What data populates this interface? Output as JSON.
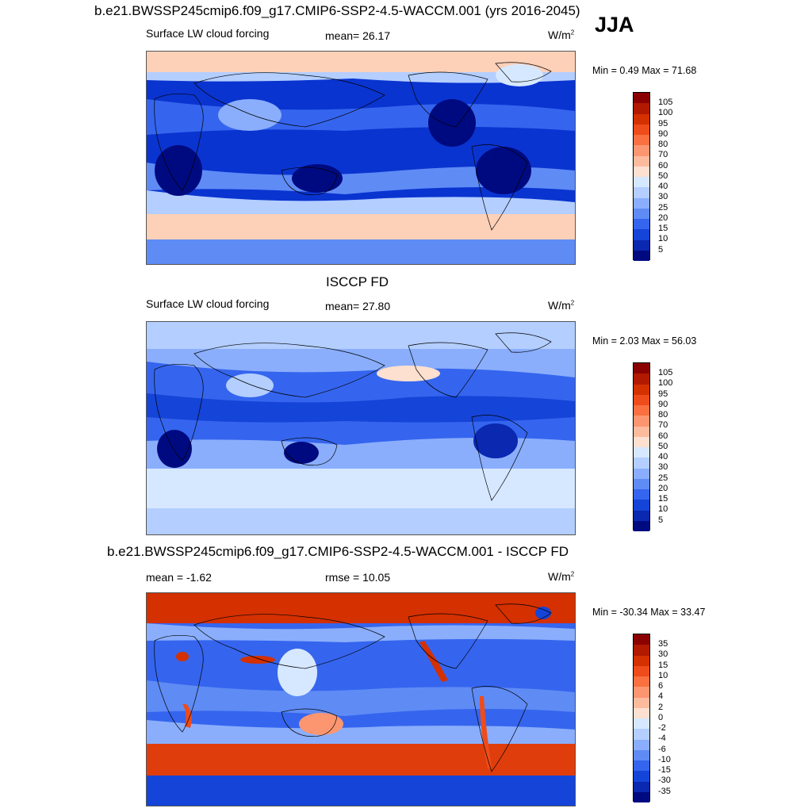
{
  "season": "JJA",
  "panels": [
    {
      "title": "b.e21.BWSSP245cmip6.f09_g17.CMIP6-SSP2-4.5-WACCM.001 (yrs 2016-2045)",
      "left_label": "Surface LW cloud forcing",
      "center_label": "mean=  26.17",
      "units_base": "W/m",
      "units_exp": "2",
      "minmax": "Min =   0.49 Max =  71.68",
      "colorbar_labels": [
        "105",
        "100",
        "95",
        "90",
        "80",
        "70",
        "60",
        "50",
        "40",
        "30",
        "25",
        "20",
        "15",
        "10",
        "5"
      ],
      "colorbar_colors": [
        "#8b0000",
        "#b11a00",
        "#d43000",
        "#ee4c1a",
        "#fa7040",
        "#fc9670",
        "#fdbb9e",
        "#fde0cf",
        "#d6e8ff",
        "#b3ceff",
        "#8aaefc",
        "#5f8bf5",
        "#3565ee",
        "#1544d8",
        "#0a28b0",
        "#000a80"
      ],
      "map_variant": "model"
    },
    {
      "title": "ISCCP FD",
      "left_label": "Surface LW cloud forcing",
      "center_label": "mean=  27.80",
      "units_base": "W/m",
      "units_exp": "2",
      "minmax": "Min =   2.03 Max =  56.03",
      "colorbar_labels": [
        "105",
        "100",
        "95",
        "90",
        "80",
        "70",
        "60",
        "50",
        "40",
        "30",
        "25",
        "20",
        "15",
        "10",
        "5"
      ],
      "colorbar_colors": [
        "#8b0000",
        "#b11a00",
        "#d43000",
        "#ee4c1a",
        "#fa7040",
        "#fc9670",
        "#fdbb9e",
        "#fde0cf",
        "#d6e8ff",
        "#b3ceff",
        "#8aaefc",
        "#5f8bf5",
        "#3565ee",
        "#1544d8",
        "#0a28b0",
        "#000a80"
      ],
      "map_variant": "obs"
    },
    {
      "title": "b.e21.BWSSP245cmip6.f09_g17.CMIP6-SSP2-4.5-WACCM.001 - ISCCP FD",
      "left_label": "mean =  -1.62",
      "center_label": "rmse =  10.05",
      "units_base": "W/m",
      "units_exp": "2",
      "minmax": "Min = -30.34 Max =  33.47",
      "colorbar_labels": [
        "35",
        "30",
        "15",
        "10",
        "6",
        "4",
        "2",
        "0",
        "-2",
        "-4",
        "-6",
        "-10",
        "-15",
        "-30",
        "-35"
      ],
      "colorbar_colors": [
        "#8b0000",
        "#b11a00",
        "#d43000",
        "#ee4c1a",
        "#fa7040",
        "#fc9670",
        "#fdbb9e",
        "#fde0cf",
        "#d6e8ff",
        "#b3ceff",
        "#8aaefc",
        "#5f8bf5",
        "#3565ee",
        "#1544d8",
        "#0a28b0",
        "#000a80"
      ],
      "map_variant": "diff"
    }
  ]
}
